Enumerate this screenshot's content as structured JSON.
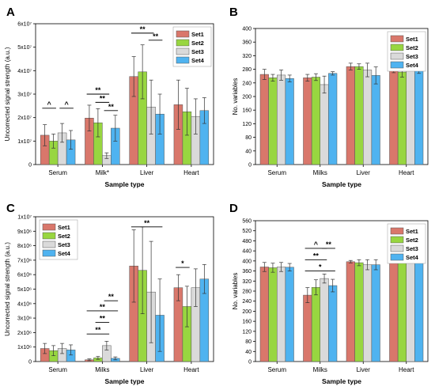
{
  "figure_title": "",
  "chart_data": [
    {
      "panel_label": "A",
      "type": "bar",
      "categories": [
        "Serum",
        "Milk*",
        "Liver",
        "Heart"
      ],
      "xlabel": "Sample type",
      "ylabel": "Uncorrected signal strength (a.u.)",
      "ylim": [
        0,
        60000000
      ],
      "yticks": [
        0,
        10000000,
        20000000,
        30000000,
        40000000,
        50000000,
        60000000
      ],
      "yticklabels": [
        "0",
        "1x10⁷",
        "2x10⁷",
        "3x10⁷",
        "4x10⁷",
        "5x10⁷",
        "6x10⁷"
      ],
      "legend_position": "top-right",
      "series": [
        {
          "name": "Set1",
          "values": [
            12500000,
            19800000,
            37500000,
            25500000
          ],
          "errors": [
            4500000,
            5500000,
            8500000,
            10500000
          ]
        },
        {
          "name": "Set2",
          "values": [
            10000000,
            17800000,
            39500000,
            22500000
          ],
          "errors": [
            3000000,
            6000000,
            11500000,
            10000000
          ]
        },
        {
          "name": "Set3",
          "values": [
            13500000,
            3800000,
            24500000,
            20500000
          ],
          "errors": [
            4000000,
            1200000,
            11500000,
            7500000
          ]
        },
        {
          "name": "Set4",
          "values": [
            10500000,
            15500000,
            21500000,
            23000000
          ],
          "errors": [
            4000000,
            5500000,
            8500000,
            5500000
          ]
        }
      ],
      "annotations": [
        {
          "cat": 0,
          "from": 0,
          "to": 1,
          "level": 24000000,
          "label": "^"
        },
        {
          "cat": 0,
          "from": 2,
          "to": 3,
          "level": 24000000,
          "label": "^"
        },
        {
          "cat": 1,
          "from": 0,
          "to": 2,
          "level": 30000000,
          "label": "**"
        },
        {
          "cat": 1,
          "from": 1,
          "to": 2,
          "level": 26500000,
          "label": "**"
        },
        {
          "cat": 1,
          "from": 2,
          "to": 3,
          "level": 23000000,
          "label": "**"
        },
        {
          "cat": 2,
          "from": 0,
          "to": 2,
          "level": 56000000,
          "label": "**"
        },
        {
          "cat": 2,
          "from": 2,
          "to": 3,
          "level": 53000000,
          "label": "**"
        }
      ]
    },
    {
      "panel_label": "B",
      "type": "bar",
      "categories": [
        "Serum",
        "Milks",
        "Liver",
        "Heart"
      ],
      "xlabel": "Sample type",
      "ylabel": "No. variables",
      "ylim": [
        0,
        400
      ],
      "yticks": [
        0,
        40,
        80,
        120,
        160,
        200,
        240,
        280,
        320,
        360,
        400
      ],
      "yticklabels": [
        "0",
        "40",
        "80",
        "120",
        "160",
        "200",
        "240",
        "280",
        "320",
        "360",
        "400"
      ],
      "legend_position": "top-right",
      "series": [
        {
          "name": "Set1",
          "values": [
            265,
            255,
            288,
            285
          ],
          "errors": [
            15,
            10,
            10,
            15
          ]
        },
        {
          "name": "Set2",
          "values": [
            255,
            257,
            288,
            272
          ],
          "errors": [
            10,
            10,
            8,
            15
          ]
        },
        {
          "name": "Set3",
          "values": [
            263,
            235,
            278,
            286
          ],
          "errors": [
            15,
            25,
            20,
            10
          ]
        },
        {
          "name": "Set4",
          "values": [
            253,
            268,
            262,
            283
          ],
          "errors": [
            10,
            5,
            25,
            15
          ]
        }
      ],
      "annotations": []
    },
    {
      "panel_label": "C",
      "type": "bar",
      "categories": [
        "Serum",
        "Milks",
        "Liver",
        "Heart"
      ],
      "xlabel": "Sample type",
      "ylabel": "Uncorrected signal strength (a.u.)",
      "ylim": [
        0,
        10000000
      ],
      "yticks": [
        0,
        1000000,
        2000000,
        3000000,
        4000000,
        5000000,
        6000000,
        7000000,
        8000000,
        9000000,
        10000000
      ],
      "yticklabels": [
        "0",
        "1x10⁶",
        "2x10⁶",
        "3x10⁶",
        "4x10⁶",
        "5x10⁶",
        "6x10⁶",
        "7x10⁶",
        "8x10⁶",
        "9x10⁶",
        "1x10⁷"
      ],
      "legend_position": "top-left",
      "series": [
        {
          "name": "Set1",
          "values": [
            900000,
            120000,
            6600000,
            5100000
          ],
          "errors": [
            350000,
            60000,
            2500000,
            900000
          ]
        },
        {
          "name": "Set2",
          "values": [
            750000,
            250000,
            6300000,
            3800000
          ],
          "errors": [
            350000,
            100000,
            3000000,
            1400000
          ]
        },
        {
          "name": "Set3",
          "values": [
            900000,
            1100000,
            4800000,
            5100000
          ],
          "errors": [
            350000,
            300000,
            3500000,
            1300000
          ]
        },
        {
          "name": "Set4",
          "values": [
            800000,
            220000,
            3200000,
            5700000
          ],
          "errors": [
            350000,
            100000,
            2500000,
            1000000
          ]
        }
      ],
      "annotations": [
        {
          "cat": 1,
          "from": 0,
          "to": 2,
          "level": 1900000,
          "label": "**"
        },
        {
          "cat": 1,
          "from": 1,
          "to": 2,
          "level": 2700000,
          "label": "**"
        },
        {
          "cat": 1,
          "from": 0,
          "to": 3,
          "level": 3500000,
          "label": "**"
        },
        {
          "cat": 1,
          "from": 2,
          "to": 3,
          "level": 4200000,
          "label": "**"
        },
        {
          "cat": 2,
          "from": 0,
          "to": 3,
          "level": 9300000,
          "label": "**"
        },
        {
          "cat": 3,
          "from": 0,
          "to": 1,
          "level": 6500000,
          "label": "*"
        }
      ]
    },
    {
      "panel_label": "D",
      "type": "bar",
      "categories": [
        "Serum",
        "Milks",
        "Liver",
        "Heart"
      ],
      "xlabel": "Sample type",
      "ylabel": "No. variables",
      "ylim": [
        0,
        560
      ],
      "yticks": [
        0,
        40,
        80,
        120,
        160,
        200,
        240,
        280,
        320,
        360,
        400,
        440,
        480,
        520,
        560
      ],
      "yticklabels": [
        "0",
        "40",
        "80",
        "120",
        "160",
        "200",
        "240",
        "280",
        "320",
        "360",
        "400",
        "440",
        "480",
        "520",
        "560"
      ],
      "legend_position": "top-right",
      "series": [
        {
          "name": "Set1",
          "values": [
            376,
            264,
            397,
            401
          ],
          "errors": [
            18,
            30,
            5,
            4
          ]
        },
        {
          "name": "Set2",
          "values": [
            373,
            295,
            393,
            400
          ],
          "errors": [
            18,
            30,
            12,
            5
          ]
        },
        {
          "name": "Set3",
          "values": [
            376,
            330,
            385,
            401
          ],
          "errors": [
            18,
            18,
            20,
            5
          ]
        },
        {
          "name": "Set4",
          "values": [
            375,
            302,
            385,
            402
          ],
          "errors": [
            15,
            25,
            20,
            4
          ]
        }
      ],
      "annotations": [
        {
          "cat": 1,
          "from": 0,
          "to": 2,
          "level": 450,
          "label": "^"
        },
        {
          "cat": 1,
          "from": 2,
          "to": 3,
          "level": 450,
          "label": "**"
        },
        {
          "cat": 1,
          "from": 0,
          "to": 2,
          "level": 405,
          "label": "**"
        },
        {
          "cat": 1,
          "from": 0,
          "to": 3,
          "level": 360,
          "label": "*"
        }
      ]
    }
  ],
  "colors": {
    "Set1": "#d9776b",
    "Set2": "#98d640",
    "Set3": "#dadada",
    "Set4": "#4fb3f0"
  }
}
